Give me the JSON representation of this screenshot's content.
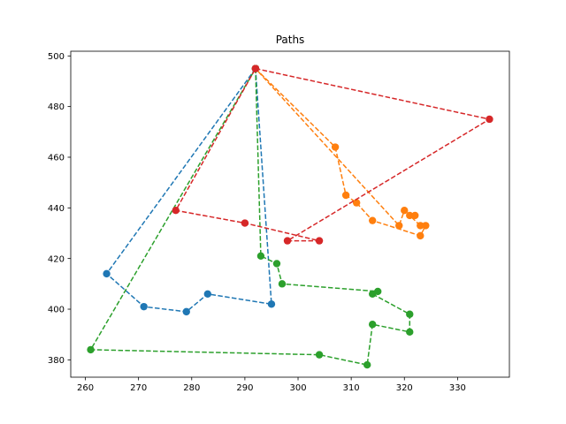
{
  "chart_data": {
    "type": "line",
    "title": "Paths",
    "xlabel": "",
    "ylabel": "",
    "xlim": [
      257.25,
      339.75
    ],
    "ylim": [
      373.15,
      501.85
    ],
    "xticks": [
      260,
      270,
      280,
      290,
      300,
      310,
      320,
      330
    ],
    "yticks": [
      380,
      400,
      420,
      440,
      460,
      480,
      500
    ],
    "grid": false,
    "line_style": "dashed",
    "marker": "circle",
    "series": [
      {
        "color": "#1f77b4",
        "points": [
          [
            292,
            495
          ],
          [
            264,
            414
          ],
          [
            271,
            401
          ],
          [
            279,
            399
          ],
          [
            283,
            406
          ],
          [
            295,
            402
          ],
          [
            292,
            495
          ]
        ]
      },
      {
        "color": "#ff7f0e",
        "points": [
          [
            292,
            495
          ],
          [
            307,
            464
          ],
          [
            309,
            445
          ],
          [
            311,
            442
          ],
          [
            314,
            435
          ],
          [
            323,
            429
          ],
          [
            324,
            433
          ],
          [
            323,
            433
          ],
          [
            321,
            437
          ],
          [
            322,
            437
          ],
          [
            320,
            439
          ],
          [
            319,
            433
          ],
          [
            292,
            495
          ]
        ]
      },
      {
        "color": "#2ca02c",
        "points": [
          [
            292,
            495
          ],
          [
            293,
            421
          ],
          [
            296,
            418
          ],
          [
            297,
            410
          ],
          [
            315,
            407
          ],
          [
            314,
            406
          ],
          [
            321,
            398
          ],
          [
            321,
            391
          ],
          [
            314,
            394
          ],
          [
            313,
            378
          ],
          [
            304,
            382
          ],
          [
            261,
            384
          ],
          [
            292,
            495
          ]
        ]
      },
      {
        "color": "#d62728",
        "points": [
          [
            292,
            495
          ],
          [
            336,
            475
          ],
          [
            298,
            427
          ],
          [
            304,
            427
          ],
          [
            290,
            434
          ],
          [
            277,
            439
          ],
          [
            292,
            495
          ]
        ]
      }
    ]
  }
}
